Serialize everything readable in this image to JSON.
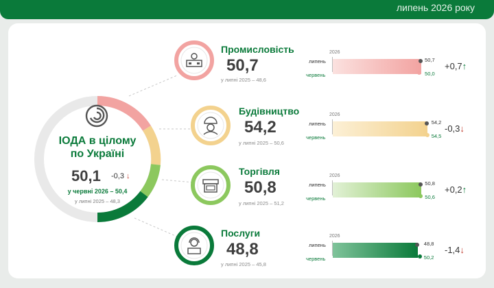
{
  "header": {
    "period": "липень 2026 року"
  },
  "overall": {
    "title_line1": "ІОДА в цілому",
    "title_line2": "по Україні",
    "value": "50,1",
    "delta": "-0,3",
    "june": "у червні 2026 – 50,4",
    "prev_year": "у липні 2025 – 48,3"
  },
  "sectors": [
    {
      "title": "Промисловість",
      "value": "50,7",
      "prev_year": "у липні 2025 – 48,6",
      "bar_year": "2026",
      "row1": "липень",
      "row2": "червень",
      "v1": "50,7",
      "v2": "50,0",
      "v1_num": 50.7,
      "v2_num": 50.0,
      "delta": "+0,7",
      "direction": "up",
      "color": "#f2a3a1",
      "light": "#fbe1df",
      "icon": "factory-icon"
    },
    {
      "title": "Будівництво",
      "value": "54,2",
      "prev_year": "у липні 2025 – 50,6",
      "bar_year": "2026",
      "row1": "липень",
      "row2": "червень",
      "v1": "54,2",
      "v2": "54,5",
      "v1_num": 54.2,
      "v2_num": 54.5,
      "delta": "-0,3",
      "direction": "down",
      "color": "#f3d28e",
      "light": "#fcf0d6",
      "icon": "builder-icon"
    },
    {
      "title": "Торгівля",
      "value": "50,8",
      "prev_year": "у липні 2025 – 51,2",
      "bar_year": "2026",
      "row1": "липень",
      "row2": "червень",
      "v1": "50,8",
      "v2": "50,6",
      "v1_num": 50.8,
      "v2_num": 50.6,
      "delta": "+0,2",
      "direction": "up",
      "color": "#8cc85e",
      "light": "#e2f1d6",
      "icon": "shop-icon"
    },
    {
      "title": "Послуги",
      "value": "48,8",
      "prev_year": "у липні 2025 – 45,8",
      "bar_year": "2026",
      "row1": "липень",
      "row2": "червень",
      "v1": "48,8",
      "v2": "50,2",
      "v1_num": 48.8,
      "v2_num": 50.2,
      "delta": "-1,4",
      "direction": "down",
      "color": "#0a7a3a",
      "light": "#7fc39a",
      "icon": "operator-icon"
    }
  ]
}
